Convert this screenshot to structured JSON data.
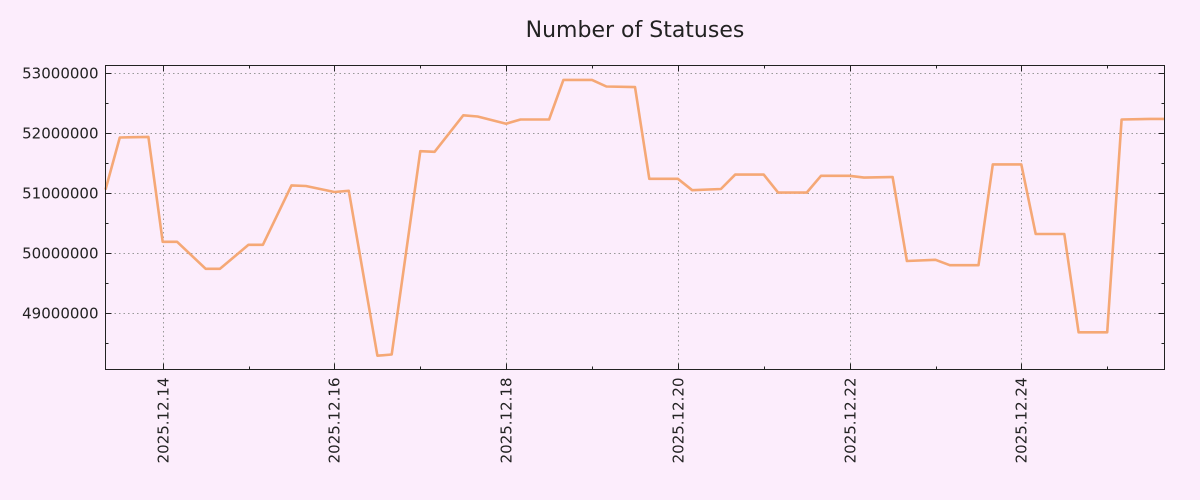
{
  "chart_data": {
    "type": "line",
    "title": "Number of Statuses",
    "xlabel": "",
    "ylabel": "",
    "grid": true,
    "legend": "none",
    "colors": {
      "background": "#fcedfc",
      "plot_background": "#fcedfc",
      "line": "#f5a876",
      "axis": "#222222",
      "grid": "#999999"
    },
    "xlim": [
      "2025-12-13T08:00",
      "2025-12-25T16:00"
    ],
    "ylim": [
      48050000,
      53120000
    ],
    "yticks": [
      49000000,
      50000000,
      51000000,
      52000000,
      53000000
    ],
    "ytick_labels": [
      "49000000",
      "50000000",
      "51000000",
      "52000000",
      "53000000"
    ],
    "xticks": [
      "2025-12-14",
      "2025-12-16",
      "2025-12-18",
      "2025-12-20",
      "2025-12-22",
      "2025-12-24"
    ],
    "xtick_labels": [
      "2025.12.14",
      "2025.12.16",
      "2025.12.18",
      "2025.12.20",
      "2025.12.22",
      "2025.12.24"
    ],
    "series": [
      {
        "x": [
          "2025-12-13T08:00",
          "2025-12-13T12:00",
          "2025-12-13T20:00",
          "2025-12-14T00:00",
          "2025-12-14T04:00",
          "2025-12-14T12:00",
          "2025-12-14T16:00",
          "2025-12-14T23:59",
          "2025-12-15T04:00",
          "2025-12-15T12:00",
          "2025-12-15T16:00",
          "2025-12-15T23:59",
          "2025-12-16T04:00",
          "2025-12-16T12:00",
          "2025-12-16T16:00",
          "2025-12-16T23:59",
          "2025-12-17T04:00",
          "2025-12-17T12:00",
          "2025-12-17T16:00",
          "2025-12-17T23:59",
          "2025-12-18T04:00",
          "2025-12-18T12:00",
          "2025-12-18T16:00",
          "2025-12-18T23:59",
          "2025-12-19T04:00",
          "2025-12-19T12:00",
          "2025-12-19T16:00",
          "2025-12-19T23:59",
          "2025-12-20T04:00",
          "2025-12-20T12:00",
          "2025-12-20T16:00",
          "2025-12-20T23:59",
          "2025-12-21T04:00",
          "2025-12-21T12:00",
          "2025-12-21T16:00",
          "2025-12-21T23:59",
          "2025-12-22T04:00",
          "2025-12-22T12:00",
          "2025-12-22T16:00",
          "2025-12-22T23:59",
          "2025-12-23T04:00",
          "2025-12-23T12:00",
          "2025-12-23T16:00",
          "2025-12-23T23:59",
          "2025-12-24T04:00",
          "2025-12-24T12:00",
          "2025-12-24T16:00",
          "2025-12-24T23:59",
          "2025-12-25T04:00",
          "2025-12-25T12:00",
          "2025-12-25T16:00"
        ],
        "values": [
          51050000,
          51920000,
          51930000,
          50180000,
          50180000,
          49730000,
          49730000,
          50130000,
          50130000,
          51120000,
          51110000,
          51010000,
          51030000,
          48280000,
          48300000,
          51690000,
          51680000,
          52290000,
          52270000,
          52150000,
          52220000,
          52220000,
          52880000,
          52880000,
          52770000,
          52760000,
          51230000,
          51230000,
          51040000,
          51060000,
          51300000,
          51300000,
          51000000,
          51000000,
          51280000,
          51280000,
          51250000,
          51260000,
          49860000,
          49880000,
          49790000,
          49790000,
          51470000,
          51470000,
          50310000,
          50310000,
          48670000,
          48670000,
          52220000,
          52230000,
          52230000
        ]
      }
    ]
  }
}
